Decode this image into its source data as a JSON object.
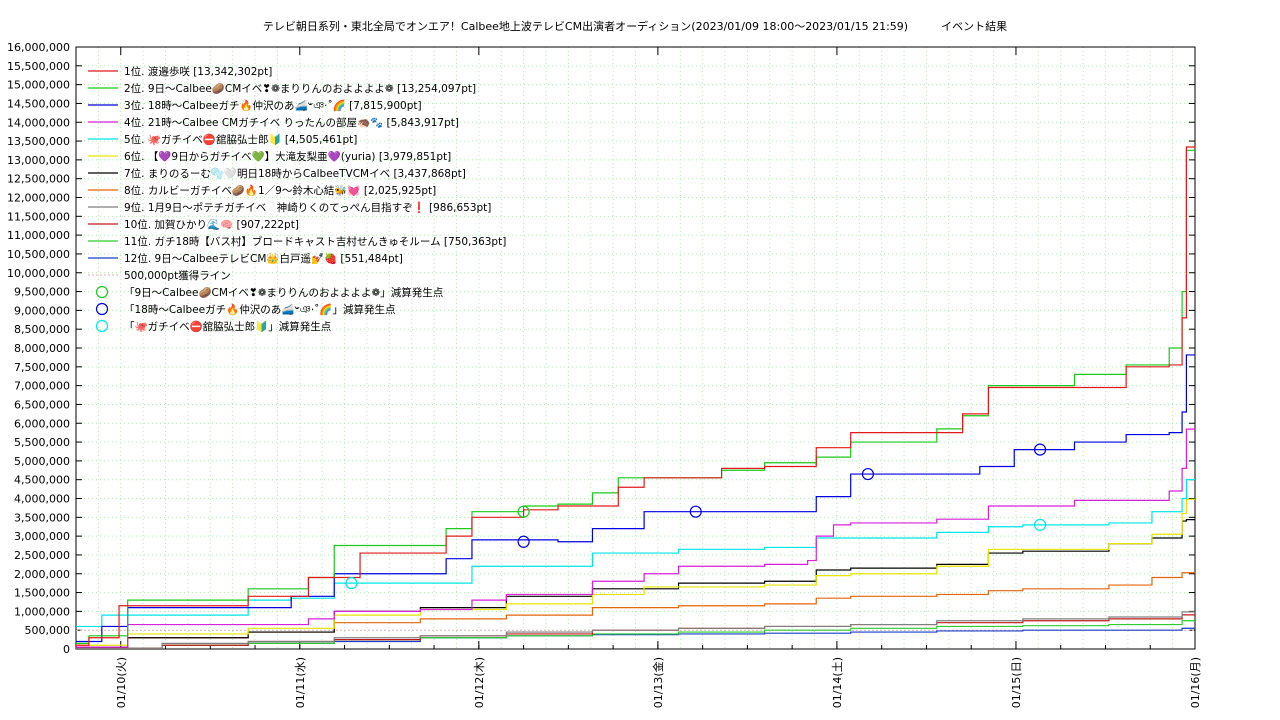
{
  "chart_data": {
    "type": "line",
    "title": "テレビ朝日系列・東北全局でオンエア！Calbee地上波テレビCM出演者オーディション(2023/01/09 18:00～2023/01/15 21:59)　　　イベント結果",
    "xlabel": "",
    "ylabel": "",
    "ylim": [
      0,
      16000000
    ],
    "xlim": [
      "2023/01/09 18:00",
      "2023/01/16 00:00"
    ],
    "y_ticks": [
      "0",
      "500,000",
      "1,000,000",
      "1,500,000",
      "2,000,000",
      "2,500,000",
      "3,000,000",
      "3,500,000",
      "4,000,000",
      "4,500,000",
      "5,000,000",
      "5,500,000",
      "6,000,000",
      "6,500,000",
      "7,000,000",
      "7,500,000",
      "8,000,000",
      "8,500,000",
      "9,000,000",
      "9,500,000",
      "10,000,000",
      "10,500,000",
      "11,000,000",
      "11,500,000",
      "12,000,000",
      "12,500,000",
      "13,000,000",
      "13,500,000",
      "14,000,000",
      "14,500,000",
      "15,000,000",
      "15,500,000",
      "16,000,000"
    ],
    "x_ticks": [
      "01/10(火)",
      "01/11(水)",
      "01/12(木)",
      "01/13(金)",
      "01/14(土)",
      "01/15(日)",
      "01/16(月)"
    ],
    "grid": true,
    "legend_position": "top-left",
    "series": [
      {
        "name": "1位. 渡邉歩咲 [13,342,302pt]",
        "color": "#e31a1c",
        "points": [
          [
            0,
            100000
          ],
          [
            0.15,
            300000
          ],
          [
            0.5,
            1150000
          ],
          [
            2,
            1400000
          ],
          [
            2.7,
            1900000
          ],
          [
            3.3,
            2550000
          ],
          [
            4,
            2550000
          ],
          [
            4.3,
            3000000
          ],
          [
            4.6,
            3500000
          ],
          [
            5,
            3500000
          ],
          [
            5.2,
            3700000
          ],
          [
            5.6,
            3800000
          ],
          [
            6,
            3800000
          ],
          [
            6.3,
            4300000
          ],
          [
            6.6,
            4550000
          ],
          [
            7,
            4550000
          ],
          [
            7.5,
            4800000
          ],
          [
            8,
            4850000
          ],
          [
            8.6,
            5350000
          ],
          [
            9,
            5750000
          ],
          [
            9.5,
            5750000
          ],
          [
            10,
            5750000
          ],
          [
            10.3,
            6250000
          ],
          [
            10.6,
            6950000
          ],
          [
            11,
            6950000
          ],
          [
            11.6,
            6950000
          ],
          [
            12.2,
            7500000
          ],
          [
            12.7,
            7550000
          ],
          [
            12.85,
            8800000
          ],
          [
            12.9,
            13342302
          ],
          [
            13,
            13342302
          ]
        ]
      },
      {
        "name": "2位. 9日～Calbee🥔CMイベ❣❁まりりんのおよよよよ❁ [13,254,097pt]",
        "color": "#1ac91a",
        "points": [
          [
            0,
            150000
          ],
          [
            0.15,
            350000
          ],
          [
            0.6,
            1300000
          ],
          [
            2,
            1600000
          ],
          [
            2.7,
            1900000
          ],
          [
            3,
            2750000
          ],
          [
            4,
            2750000
          ],
          [
            4.3,
            3200000
          ],
          [
            4.6,
            3650000
          ],
          [
            5,
            3650000
          ],
          [
            5.2,
            3800000
          ],
          [
            5.6,
            3850000
          ],
          [
            6,
            4150000
          ],
          [
            6.3,
            4550000
          ],
          [
            6.6,
            4550000
          ],
          [
            7,
            4550000
          ],
          [
            7.5,
            4750000
          ],
          [
            8,
            4950000
          ],
          [
            8.6,
            5100000
          ],
          [
            9,
            5500000
          ],
          [
            9.5,
            5500000
          ],
          [
            10,
            5850000
          ],
          [
            10.3,
            6200000
          ],
          [
            10.6,
            7000000
          ],
          [
            11,
            7000000
          ],
          [
            11.6,
            7300000
          ],
          [
            12.2,
            7550000
          ],
          [
            12.7,
            8000000
          ],
          [
            12.85,
            9500000
          ],
          [
            12.9,
            13254097
          ],
          [
            13,
            13254097
          ]
        ]
      },
      {
        "name": "3位. 18時～Calbeeガチ🔥仲沢のあ🚄𐤔ঞ‧˚🌈 [7,815,900pt]",
        "color": "#0000e0",
        "points": [
          [
            0,
            200000
          ],
          [
            0.3,
            600000
          ],
          [
            0.6,
            1100000
          ],
          [
            2,
            1100000
          ],
          [
            2.5,
            1400000
          ],
          [
            3,
            2000000
          ],
          [
            4,
            2000000
          ],
          [
            4.3,
            2400000
          ],
          [
            4.6,
            2900000
          ],
          [
            5,
            2900000
          ],
          [
            5.6,
            2850000
          ],
          [
            6,
            3200000
          ],
          [
            6.6,
            3650000
          ],
          [
            7,
            3650000
          ],
          [
            7.5,
            3650000
          ],
          [
            8,
            3650000
          ],
          [
            8.6,
            4050000
          ],
          [
            9,
            4650000
          ],
          [
            9.5,
            4650000
          ],
          [
            10,
            4650000
          ],
          [
            10.5,
            4850000
          ],
          [
            10.9,
            5300000
          ],
          [
            11.2,
            5300000
          ],
          [
            11.6,
            5500000
          ],
          [
            12.2,
            5700000
          ],
          [
            12.7,
            5750000
          ],
          [
            12.85,
            6300000
          ],
          [
            12.9,
            7815900
          ],
          [
            13,
            7815900
          ]
        ]
      },
      {
        "name": "4位. 21時～Calbee CMガチイベ りったんの部屋🦔🐾 [5,843,917pt]",
        "color": "#d91fd9",
        "points": [
          [
            0,
            50000
          ],
          [
            0.6,
            650000
          ],
          [
            2,
            650000
          ],
          [
            2.7,
            800000
          ],
          [
            3,
            1000000
          ],
          [
            4,
            1050000
          ],
          [
            4.6,
            1300000
          ],
          [
            5,
            1450000
          ],
          [
            6,
            1800000
          ],
          [
            6.6,
            2000000
          ],
          [
            7,
            2200000
          ],
          [
            8,
            2250000
          ],
          [
            8.5,
            2350000
          ],
          [
            8.6,
            3000000
          ],
          [
            8.8,
            3300000
          ],
          [
            9,
            3350000
          ],
          [
            10,
            3450000
          ],
          [
            10.6,
            3800000
          ],
          [
            11,
            3800000
          ],
          [
            11.6,
            3950000
          ],
          [
            12.2,
            3950000
          ],
          [
            12.7,
            4200000
          ],
          [
            12.85,
            4800000
          ],
          [
            12.9,
            5843917
          ],
          [
            13,
            5843917
          ]
        ]
      },
      {
        "name": "5位. 🐙ガチイベ⛔舘脇弘士郎🔰 [4,505,461pt]",
        "color": "#00e5e5",
        "points": [
          [
            0,
            600000
          ],
          [
            0.3,
            900000
          ],
          [
            0.6,
            900000
          ],
          [
            2,
            1300000
          ],
          [
            2.5,
            1350000
          ],
          [
            3,
            1750000
          ],
          [
            4,
            1750000
          ],
          [
            4.6,
            2200000
          ],
          [
            5,
            2200000
          ],
          [
            6,
            2550000
          ],
          [
            6.6,
            2550000
          ],
          [
            7,
            2650000
          ],
          [
            8,
            2700000
          ],
          [
            8.6,
            2950000
          ],
          [
            9,
            2950000
          ],
          [
            10,
            3100000
          ],
          [
            10.6,
            3250000
          ],
          [
            11,
            3300000
          ],
          [
            12,
            3350000
          ],
          [
            12.5,
            3650000
          ],
          [
            12.85,
            4000000
          ],
          [
            12.9,
            4505461
          ],
          [
            13,
            4505461
          ]
        ]
      },
      {
        "name": "6位. 【💜9日からガチイベ💚】大滝友梨亜💜(yuria) [3,979,851pt]",
        "color": "#e5e500",
        "points": [
          [
            0,
            100000
          ],
          [
            0.6,
            400000
          ],
          [
            2,
            550000
          ],
          [
            3,
            900000
          ],
          [
            4,
            1050000
          ],
          [
            5,
            1200000
          ],
          [
            6,
            1450000
          ],
          [
            6.6,
            1650000
          ],
          [
            7,
            1650000
          ],
          [
            8,
            1700000
          ],
          [
            8.6,
            1950000
          ],
          [
            9,
            2000000
          ],
          [
            10,
            2200000
          ],
          [
            10.6,
            2650000
          ],
          [
            11,
            2650000
          ],
          [
            12,
            2800000
          ],
          [
            12.5,
            3050000
          ],
          [
            12.85,
            3600000
          ],
          [
            12.9,
            3979851
          ],
          [
            13,
            3979851
          ]
        ]
      },
      {
        "name": "7位. まりのるーむ🫧🤍明日18時からCalbeeTVCMイベ [3,437,868pt]",
        "color": "#000000",
        "points": [
          [
            0,
            50000
          ],
          [
            0.6,
            300000
          ],
          [
            2,
            450000
          ],
          [
            3,
            1000000
          ],
          [
            4,
            1100000
          ],
          [
            5,
            1400000
          ],
          [
            6,
            1600000
          ],
          [
            7,
            1750000
          ],
          [
            8,
            1800000
          ],
          [
            8.6,
            2100000
          ],
          [
            9,
            2150000
          ],
          [
            10,
            2250000
          ],
          [
            10.6,
            2550000
          ],
          [
            11,
            2600000
          ],
          [
            12,
            2800000
          ],
          [
            12.5,
            2950000
          ],
          [
            12.85,
            3400000
          ],
          [
            12.9,
            3437868
          ],
          [
            13,
            3437868
          ]
        ]
      },
      {
        "name": "8位. カルビーガチイベ🥔🔥1／9～鈴木心結🐝💓 [2,025,925pt]",
        "color": "#e5650a",
        "points": [
          [
            0,
            50000
          ],
          [
            0.6,
            300000
          ],
          [
            2,
            450000
          ],
          [
            3,
            700000
          ],
          [
            4,
            800000
          ],
          [
            5,
            900000
          ],
          [
            6,
            1100000
          ],
          [
            7,
            1150000
          ],
          [
            8,
            1200000
          ],
          [
            8.6,
            1350000
          ],
          [
            9,
            1400000
          ],
          [
            10,
            1450000
          ],
          [
            10.6,
            1550000
          ],
          [
            11,
            1600000
          ],
          [
            12,
            1700000
          ],
          [
            12.5,
            1900000
          ],
          [
            12.85,
            2025925
          ],
          [
            13,
            2025925
          ]
        ]
      },
      {
        "name": "9位. 1月9日～ポテチガチイベ　神崎りくのてっぺん目指すぞ❗ [986,653pt]",
        "color": "#808080",
        "points": [
          [
            0,
            20000
          ],
          [
            1,
            150000
          ],
          [
            2,
            200000
          ],
          [
            3,
            300000
          ],
          [
            4,
            350000
          ],
          [
            5,
            450000
          ],
          [
            6,
            500000
          ],
          [
            7,
            550000
          ],
          [
            8,
            600000
          ],
          [
            9,
            650000
          ],
          [
            10,
            750000
          ],
          [
            11,
            800000
          ],
          [
            12,
            850000
          ],
          [
            12.85,
            986653
          ],
          [
            13,
            986653
          ]
        ]
      },
      {
        "name": "10位. 加賀ひかり🌊🧠 [907,222pt]",
        "color": "#c41a1a",
        "points": [
          [
            0,
            20000
          ],
          [
            1,
            100000
          ],
          [
            2,
            200000
          ],
          [
            3,
            250000
          ],
          [
            4,
            350000
          ],
          [
            5,
            400000
          ],
          [
            6,
            500000
          ],
          [
            7,
            550000
          ],
          [
            8,
            600000
          ],
          [
            9,
            650000
          ],
          [
            10,
            700000
          ],
          [
            11,
            750000
          ],
          [
            12,
            800000
          ],
          [
            12.85,
            907222
          ],
          [
            13,
            907222
          ]
        ]
      },
      {
        "name": "11位. ガチ18時【バス村】ブロードキャスト吉村せんきゅそルーム [750,363pt]",
        "color": "#2ecc2e",
        "points": [
          [
            0,
            20000
          ],
          [
            1,
            100000
          ],
          [
            2,
            150000
          ],
          [
            3,
            250000
          ],
          [
            4,
            300000
          ],
          [
            5,
            350000
          ],
          [
            6,
            400000
          ],
          [
            7,
            450000
          ],
          [
            8,
            500000
          ],
          [
            9,
            550000
          ],
          [
            10,
            600000
          ],
          [
            11,
            620000
          ],
          [
            12,
            650000
          ],
          [
            12.85,
            750363
          ],
          [
            13,
            750363
          ]
        ]
      },
      {
        "name": "12位. 9日～CalbeeテレビCM👑白戸遥💅🍓 [551,484pt]",
        "color": "#1a3cc9",
        "points": [
          [
            0,
            20000
          ],
          [
            1,
            100000
          ],
          [
            2,
            150000
          ],
          [
            3,
            200000
          ],
          [
            4,
            300000
          ],
          [
            5,
            350000
          ],
          [
            6,
            380000
          ],
          [
            7,
            400000
          ],
          [
            8,
            420000
          ],
          [
            9,
            450000
          ],
          [
            10,
            480000
          ],
          [
            11,
            500000
          ],
          [
            12,
            500000
          ],
          [
            12.85,
            551484
          ],
          [
            13,
            551484
          ]
        ]
      }
    ],
    "reference_line": {
      "name": "500,000pt獲得ライン",
      "value": 500000,
      "color": "#e5b3b3"
    },
    "markers": [
      {
        "name": "「9日～Calbee🥔CMイベ❣❁まりりんのおよよよよ❁」減算発生点",
        "color": "#1ac91a",
        "points": [
          [
            5.2,
            3650000
          ]
        ]
      },
      {
        "name": "「18時～Calbeeガチ🔥仲沢のあ🚄𐤔ঞ‧˚🌈」減算発生点",
        "color": "#0000e0",
        "points": [
          [
            5.2,
            2850000
          ],
          [
            7.2,
            3650000
          ],
          [
            9.2,
            4650000
          ],
          [
            11.2,
            5300000
          ]
        ]
      },
      {
        "name": "「🐙ガチイベ⛔舘脇弘士郎🔰」減算発生点",
        "color": "#00e5e5",
        "points": [
          [
            3.2,
            1750000
          ],
          [
            11.2,
            3300000
          ]
        ]
      }
    ]
  }
}
